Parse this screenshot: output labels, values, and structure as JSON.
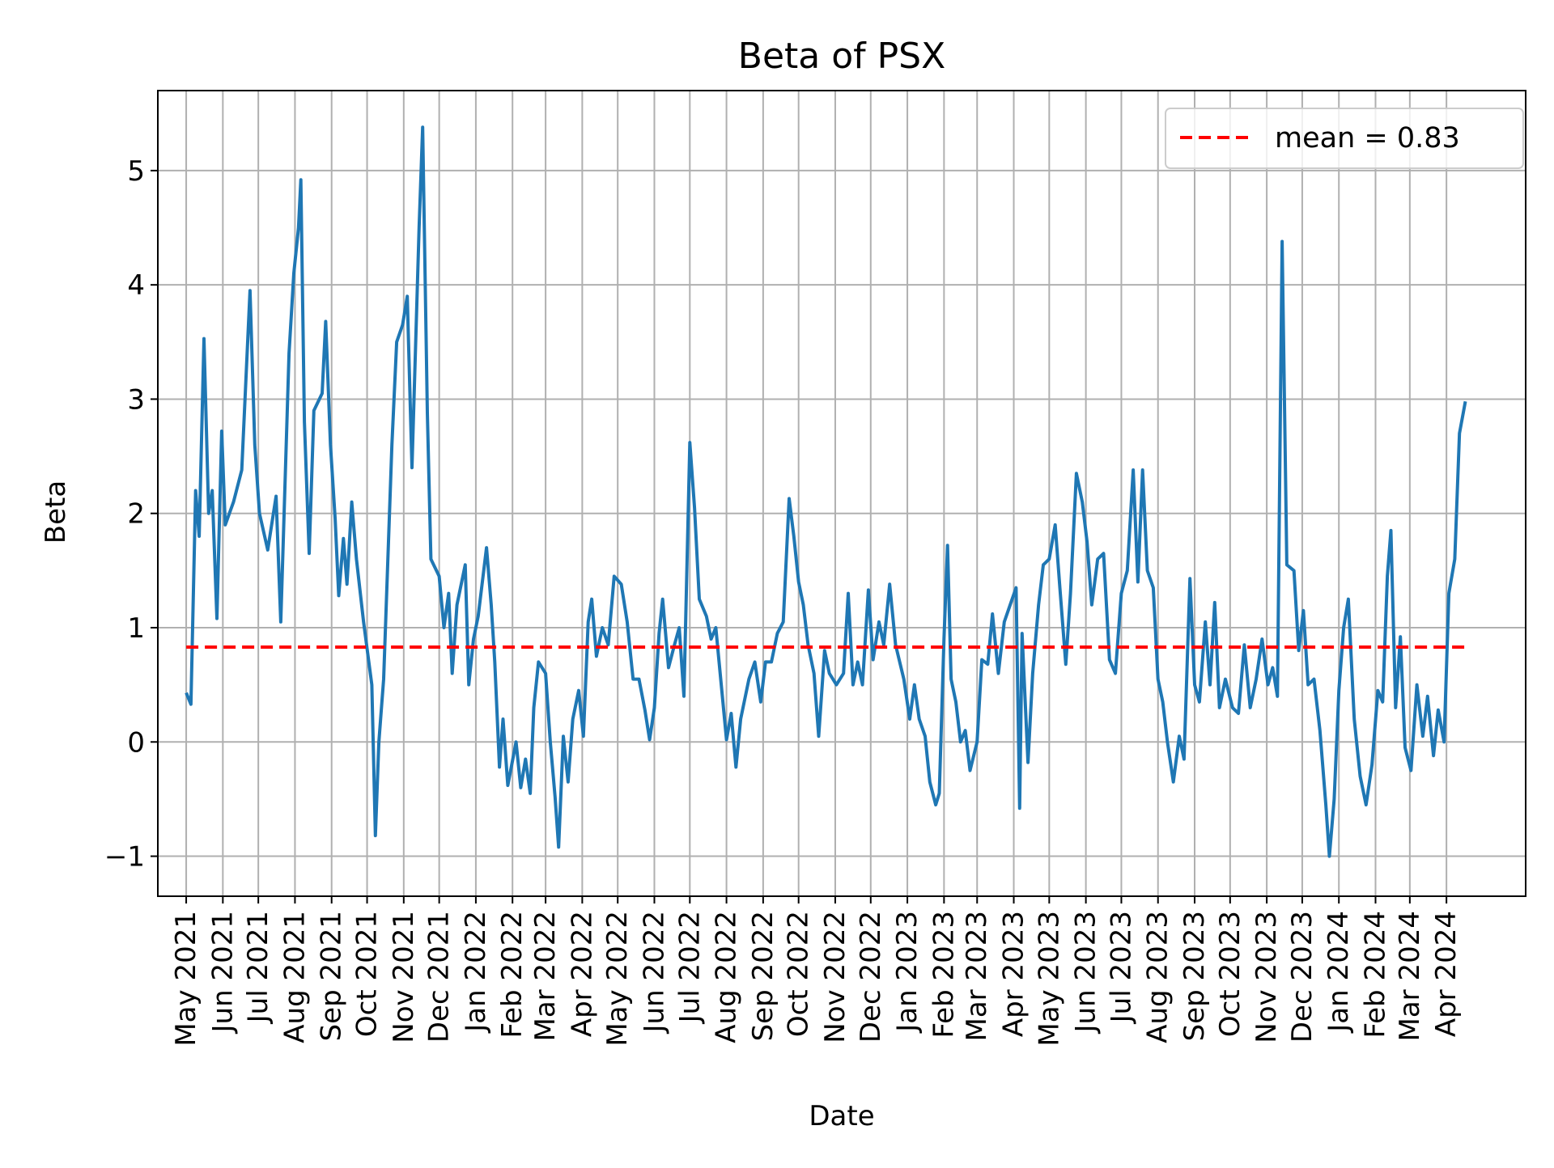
{
  "chart_data": {
    "type": "line",
    "title": "Beta of PSX",
    "xlabel": "Date",
    "ylabel": "Beta",
    "ylim": [
      -1.35,
      5.7
    ],
    "xlim": [
      "2021-04-07",
      "2024-06-07"
    ],
    "grid": true,
    "legend_position": "top-right",
    "y_ticks": [
      -1,
      0,
      1,
      2,
      3,
      4,
      5
    ],
    "y_tick_labels": [
      "−1",
      "0",
      "1",
      "2",
      "3",
      "4",
      "5"
    ],
    "x_ticks": [
      "2021-05-01",
      "2021-06-01",
      "2021-07-01",
      "2021-08-01",
      "2021-09-01",
      "2021-10-01",
      "2021-11-01",
      "2021-12-01",
      "2022-01-01",
      "2022-02-01",
      "2022-03-01",
      "2022-04-01",
      "2022-05-01",
      "2022-06-01",
      "2022-07-01",
      "2022-08-01",
      "2022-09-01",
      "2022-10-01",
      "2022-11-01",
      "2022-12-01",
      "2023-01-01",
      "2023-02-01",
      "2023-03-01",
      "2023-04-01",
      "2023-05-01",
      "2023-06-01",
      "2023-07-01",
      "2023-08-01",
      "2023-09-01",
      "2023-10-01",
      "2023-11-01",
      "2023-12-01",
      "2024-01-01",
      "2024-02-01",
      "2024-03-01",
      "2024-04-01"
    ],
    "x_tick_labels": [
      "May 2021",
      "Jun 2021",
      "Jul 2021",
      "Aug 2021",
      "Sep 2021",
      "Oct 2021",
      "Nov 2021",
      "Dec 2021",
      "Jan 2022",
      "Feb 2022",
      "Mar 2022",
      "Apr 2022",
      "May 2022",
      "Jun 2022",
      "Jul 2022",
      "Aug 2022",
      "Sep 2022",
      "Oct 2022",
      "Nov 2022",
      "Dec 2022",
      "Jan 2023",
      "Feb 2023",
      "Mar 2023",
      "Apr 2023",
      "May 2023",
      "Jun 2023",
      "Jul 2023",
      "Aug 2023",
      "Sep 2023",
      "Oct 2023",
      "Nov 2023",
      "Dec 2023",
      "Jan 2024",
      "Feb 2024",
      "Mar 2024",
      "Apr 2024"
    ],
    "series": [
      {
        "color": "#1f77b4",
        "points": [
          [
            "2021-05-01",
            0.43
          ],
          [
            "2021-05-05",
            0.33
          ],
          [
            "2021-05-09",
            2.2
          ],
          [
            "2021-05-12",
            1.8
          ],
          [
            "2021-05-16",
            3.53
          ],
          [
            "2021-05-20",
            2.0
          ],
          [
            "2021-05-23",
            2.2
          ],
          [
            "2021-05-27",
            1.08
          ],
          [
            "2021-05-31",
            2.72
          ],
          [
            "2021-06-03",
            1.9
          ],
          [
            "2021-06-10",
            2.1
          ],
          [
            "2021-06-17",
            2.38
          ],
          [
            "2021-06-24",
            3.95
          ],
          [
            "2021-06-28",
            2.6
          ],
          [
            "2021-07-02",
            2.0
          ],
          [
            "2021-07-09",
            1.68
          ],
          [
            "2021-07-16",
            2.15
          ],
          [
            "2021-07-20",
            1.05
          ],
          [
            "2021-07-27",
            3.4
          ],
          [
            "2021-07-31",
            4.1
          ],
          [
            "2021-08-04",
            4.5
          ],
          [
            "2021-08-06",
            4.92
          ],
          [
            "2021-08-09",
            2.8
          ],
          [
            "2021-08-13",
            1.65
          ],
          [
            "2021-08-17",
            2.9
          ],
          [
            "2021-08-24",
            3.05
          ],
          [
            "2021-08-27",
            3.68
          ],
          [
            "2021-08-31",
            2.6
          ],
          [
            "2021-09-04",
            1.95
          ],
          [
            "2021-09-07",
            1.28
          ],
          [
            "2021-09-11",
            1.78
          ],
          [
            "2021-09-14",
            1.38
          ],
          [
            "2021-09-18",
            2.1
          ],
          [
            "2021-09-22",
            1.6
          ],
          [
            "2021-09-28",
            1.05
          ],
          [
            "2021-10-05",
            0.5
          ],
          [
            "2021-10-08",
            -0.82
          ],
          [
            "2021-10-11",
            0.0
          ],
          [
            "2021-10-15",
            0.55
          ],
          [
            "2021-10-22",
            2.6
          ],
          [
            "2021-10-26",
            3.5
          ],
          [
            "2021-10-31",
            3.65
          ],
          [
            "2021-11-04",
            3.9
          ],
          [
            "2021-11-08",
            2.4
          ],
          [
            "2021-11-14",
            4.5
          ],
          [
            "2021-11-17",
            5.38
          ],
          [
            "2021-11-21",
            2.88
          ],
          [
            "2021-11-24",
            1.6
          ],
          [
            "2021-12-01",
            1.45
          ],
          [
            "2021-12-05",
            1.0
          ],
          [
            "2021-12-09",
            1.3
          ],
          [
            "2021-12-12",
            0.6
          ],
          [
            "2021-12-16",
            1.2
          ],
          [
            "2021-12-23",
            1.55
          ],
          [
            "2021-12-26",
            0.5
          ],
          [
            "2021-12-30",
            0.9
          ],
          [
            "2022-01-03",
            1.1
          ],
          [
            "2022-01-10",
            1.7
          ],
          [
            "2022-01-14",
            1.2
          ],
          [
            "2022-01-17",
            0.7
          ],
          [
            "2022-01-21",
            -0.22
          ],
          [
            "2022-01-24",
            0.2
          ],
          [
            "2022-01-28",
            -0.38
          ],
          [
            "2022-02-04",
            0.0
          ],
          [
            "2022-02-08",
            -0.4
          ],
          [
            "2022-02-12",
            -0.15
          ],
          [
            "2022-02-16",
            -0.45
          ],
          [
            "2022-02-19",
            0.3
          ],
          [
            "2022-02-23",
            0.7
          ],
          [
            "2022-03-01",
            0.6
          ],
          [
            "2022-03-05",
            0.0
          ],
          [
            "2022-03-09",
            -0.48
          ],
          [
            "2022-03-12",
            -0.92
          ],
          [
            "2022-03-16",
            0.05
          ],
          [
            "2022-03-20",
            -0.35
          ],
          [
            "2022-03-24",
            0.2
          ],
          [
            "2022-03-29",
            0.45
          ],
          [
            "2022-04-02",
            0.05
          ],
          [
            "2022-04-06",
            1.05
          ],
          [
            "2022-04-09",
            1.25
          ],
          [
            "2022-04-13",
            0.75
          ],
          [
            "2022-04-18",
            1.0
          ],
          [
            "2022-04-23",
            0.85
          ],
          [
            "2022-04-28",
            1.45
          ],
          [
            "2022-05-04",
            1.38
          ],
          [
            "2022-05-09",
            1.05
          ],
          [
            "2022-05-14",
            0.55
          ],
          [
            "2022-05-19",
            0.55
          ],
          [
            "2022-05-24",
            0.28
          ],
          [
            "2022-05-28",
            0.02
          ],
          [
            "2022-06-01",
            0.3
          ],
          [
            "2022-06-05",
            0.95
          ],
          [
            "2022-06-08",
            1.25
          ],
          [
            "2022-06-13",
            0.65
          ],
          [
            "2022-06-18",
            0.85
          ],
          [
            "2022-06-22",
            1.0
          ],
          [
            "2022-06-26",
            0.4
          ],
          [
            "2022-07-01",
            2.62
          ],
          [
            "2022-07-05",
            2.05
          ],
          [
            "2022-07-09",
            1.25
          ],
          [
            "2022-07-15",
            1.1
          ],
          [
            "2022-07-19",
            0.9
          ],
          [
            "2022-07-23",
            1.0
          ],
          [
            "2022-08-01",
            0.02
          ],
          [
            "2022-08-05",
            0.25
          ],
          [
            "2022-08-09",
            -0.22
          ],
          [
            "2022-08-13",
            0.2
          ],
          [
            "2022-08-20",
            0.55
          ],
          [
            "2022-08-25",
            0.7
          ],
          [
            "2022-08-30",
            0.35
          ],
          [
            "2022-09-03",
            0.7
          ],
          [
            "2022-09-08",
            0.7
          ],
          [
            "2022-09-13",
            0.95
          ],
          [
            "2022-09-18",
            1.05
          ],
          [
            "2022-09-23",
            2.13
          ],
          [
            "2022-09-27",
            1.8
          ],
          [
            "2022-10-01",
            1.4
          ],
          [
            "2022-10-05",
            1.2
          ],
          [
            "2022-10-09",
            0.85
          ],
          [
            "2022-10-14",
            0.6
          ],
          [
            "2022-10-18",
            0.05
          ],
          [
            "2022-10-23",
            0.8
          ],
          [
            "2022-10-27",
            0.6
          ],
          [
            "2022-11-02",
            0.5
          ],
          [
            "2022-11-08",
            0.6
          ],
          [
            "2022-11-12",
            1.3
          ],
          [
            "2022-11-16",
            0.5
          ],
          [
            "2022-11-20",
            0.7
          ],
          [
            "2022-11-24",
            0.5
          ],
          [
            "2022-11-29",
            1.33
          ],
          [
            "2022-12-03",
            0.72
          ],
          [
            "2022-12-08",
            1.05
          ],
          [
            "2022-12-12",
            0.85
          ],
          [
            "2022-12-17",
            1.38
          ],
          [
            "2022-12-22",
            0.85
          ],
          [
            "2022-12-29",
            0.55
          ],
          [
            "2023-01-03",
            0.2
          ],
          [
            "2023-01-07",
            0.5
          ],
          [
            "2023-01-11",
            0.2
          ],
          [
            "2023-01-16",
            0.05
          ],
          [
            "2023-01-20",
            -0.35
          ],
          [
            "2023-01-25",
            -0.55
          ],
          [
            "2023-01-28",
            -0.45
          ],
          [
            "2023-02-01",
            0.9
          ],
          [
            "2023-02-04",
            1.72
          ],
          [
            "2023-02-07",
            0.55
          ],
          [
            "2023-02-11",
            0.35
          ],
          [
            "2023-02-15",
            0.0
          ],
          [
            "2023-02-19",
            0.1
          ],
          [
            "2023-02-23",
            -0.25
          ],
          [
            "2023-03-01",
            0.0
          ],
          [
            "2023-03-05",
            0.72
          ],
          [
            "2023-03-10",
            0.68
          ],
          [
            "2023-03-14",
            1.12
          ],
          [
            "2023-03-19",
            0.6
          ],
          [
            "2023-03-24",
            1.05
          ],
          [
            "2023-03-29",
            1.2
          ],
          [
            "2023-04-03",
            1.35
          ],
          [
            "2023-04-06",
            -0.58
          ],
          [
            "2023-04-08",
            0.95
          ],
          [
            "2023-04-13",
            -0.18
          ],
          [
            "2023-04-17",
            0.6
          ],
          [
            "2023-04-22",
            1.2
          ],
          [
            "2023-04-26",
            1.55
          ],
          [
            "2023-05-01",
            1.6
          ],
          [
            "2023-05-06",
            1.9
          ],
          [
            "2023-05-10",
            1.35
          ],
          [
            "2023-05-15",
            0.68
          ],
          [
            "2023-05-19",
            1.3
          ],
          [
            "2023-05-24",
            2.35
          ],
          [
            "2023-05-29",
            2.1
          ],
          [
            "2023-06-02",
            1.75
          ],
          [
            "2023-06-06",
            1.2
          ],
          [
            "2023-06-11",
            1.6
          ],
          [
            "2023-06-16",
            1.65
          ],
          [
            "2023-06-21",
            0.72
          ],
          [
            "2023-06-26",
            0.6
          ],
          [
            "2023-07-01",
            1.3
          ],
          [
            "2023-07-06",
            1.5
          ],
          [
            "2023-07-11",
            2.38
          ],
          [
            "2023-07-15",
            1.4
          ],
          [
            "2023-07-19",
            2.38
          ],
          [
            "2023-07-23",
            1.5
          ],
          [
            "2023-07-28",
            1.35
          ],
          [
            "2023-08-01",
            0.55
          ],
          [
            "2023-08-05",
            0.35
          ],
          [
            "2023-08-09",
            0.0
          ],
          [
            "2023-08-14",
            -0.35
          ],
          [
            "2023-08-19",
            0.05
          ],
          [
            "2023-08-23",
            -0.15
          ],
          [
            "2023-08-28",
            1.43
          ],
          [
            "2023-09-01",
            0.5
          ],
          [
            "2023-09-05",
            0.35
          ],
          [
            "2023-09-10",
            1.05
          ],
          [
            "2023-09-14",
            0.5
          ],
          [
            "2023-09-18",
            1.22
          ],
          [
            "2023-09-22",
            0.3
          ],
          [
            "2023-09-27",
            0.55
          ],
          [
            "2023-10-03",
            0.3
          ],
          [
            "2023-10-08",
            0.25
          ],
          [
            "2023-10-13",
            0.85
          ],
          [
            "2023-10-18",
            0.3
          ],
          [
            "2023-10-23",
            0.55
          ],
          [
            "2023-10-28",
            0.9
          ],
          [
            "2023-11-02",
            0.5
          ],
          [
            "2023-11-06",
            0.65
          ],
          [
            "2023-11-10",
            0.4
          ],
          [
            "2023-11-14",
            4.38
          ],
          [
            "2023-11-18",
            1.55
          ],
          [
            "2023-11-24",
            1.5
          ],
          [
            "2023-11-28",
            0.8
          ],
          [
            "2023-12-02",
            1.15
          ],
          [
            "2023-12-06",
            0.5
          ],
          [
            "2023-12-11",
            0.55
          ],
          [
            "2023-12-16",
            0.1
          ],
          [
            "2023-12-21",
            -0.55
          ],
          [
            "2023-12-24",
            -1.0
          ],
          [
            "2023-12-28",
            -0.5
          ],
          [
            "2024-01-01",
            0.45
          ],
          [
            "2024-01-05",
            1.0
          ],
          [
            "2024-01-09",
            1.25
          ],
          [
            "2024-01-14",
            0.2
          ],
          [
            "2024-01-19",
            -0.3
          ],
          [
            "2024-01-24",
            -0.55
          ],
          [
            "2024-01-29",
            -0.2
          ],
          [
            "2024-02-03",
            0.45
          ],
          [
            "2024-02-07",
            0.35
          ],
          [
            "2024-02-11",
            1.45
          ],
          [
            "2024-02-14",
            1.85
          ],
          [
            "2024-02-18",
            0.3
          ],
          [
            "2024-02-22",
            0.92
          ],
          [
            "2024-02-26",
            -0.05
          ],
          [
            "2024-03-02",
            -0.25
          ],
          [
            "2024-03-07",
            0.5
          ],
          [
            "2024-03-12",
            0.05
          ],
          [
            "2024-03-16",
            0.4
          ],
          [
            "2024-03-21",
            -0.12
          ],
          [
            "2024-03-25",
            0.28
          ],
          [
            "2024-03-30",
            0.0
          ],
          [
            "2024-04-03",
            1.3
          ],
          [
            "2024-04-08",
            1.6
          ],
          [
            "2024-04-12",
            2.7
          ],
          [
            "2024-04-17",
            2.98
          ]
        ]
      },
      {
        "name": "mean = 0.83",
        "color": "#ff0000",
        "dashed": true,
        "points": [
          [
            "2021-05-01",
            0.83
          ],
          [
            "2024-04-17",
            0.83
          ]
        ]
      }
    ]
  }
}
